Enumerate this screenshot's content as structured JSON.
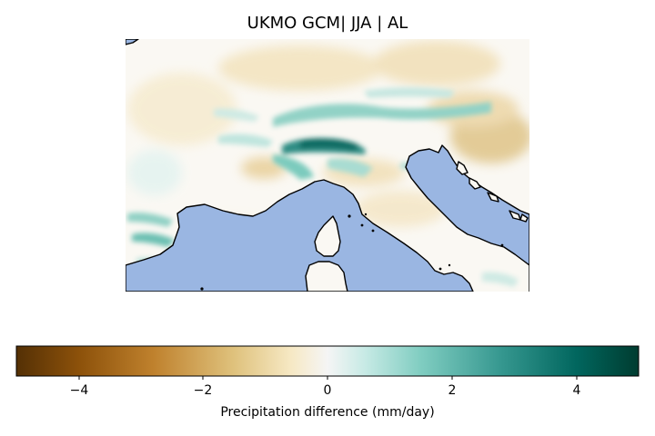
{
  "title": "UKMO GCM| JJA | AL",
  "colorbar": {
    "label": "Precipitation difference (mm/day)",
    "min": -5,
    "max": 5,
    "ticks": [
      {
        "value": -4,
        "label": "−4"
      },
      {
        "value": -2,
        "label": "−2"
      },
      {
        "value": 0,
        "label": "0"
      },
      {
        "value": 2,
        "label": "2"
      },
      {
        "value": 4,
        "label": "4"
      }
    ],
    "colormap": "BrBG",
    "colors": [
      "#543005",
      "#8c510a",
      "#bf812d",
      "#dfc27d",
      "#f6e8c3",
      "#f5f5f5",
      "#c7eae5",
      "#80cdc1",
      "#35978f",
      "#01665e",
      "#003c30"
    ]
  },
  "map": {
    "sea_color": "#9ab6e2",
    "coastline_color": "#000000"
  }
}
